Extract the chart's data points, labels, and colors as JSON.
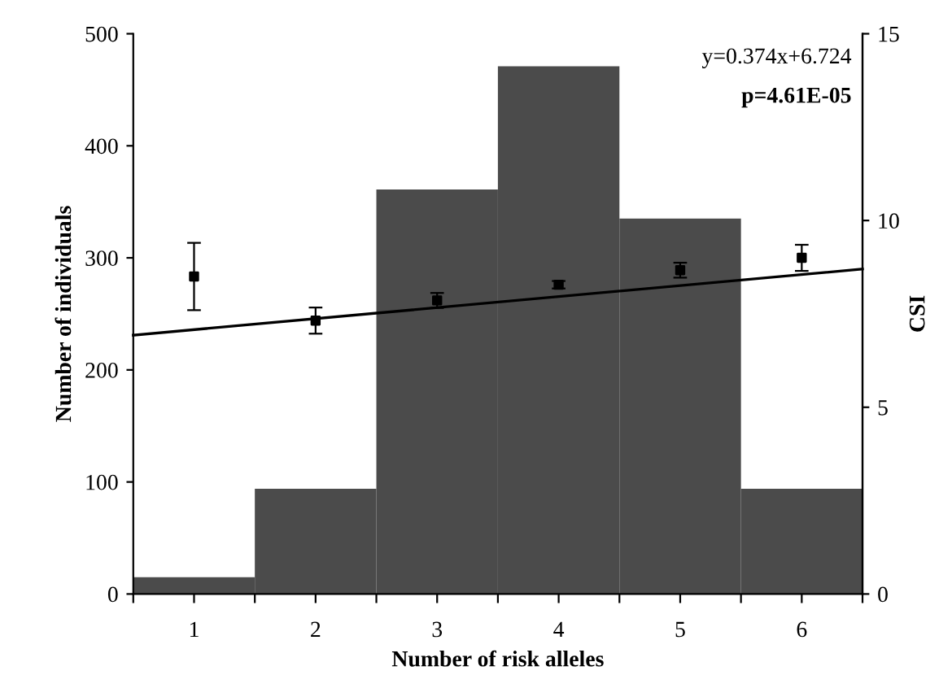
{
  "chart_data": {
    "type": "bar",
    "xlabel": "Number of risk alleles",
    "ylabel": "Number of individuals",
    "y2label": "CSI",
    "x": [
      1,
      2,
      3,
      4,
      5,
      6
    ],
    "xlim": [
      0.5,
      6.5
    ],
    "xticks": [
      {
        "value": 0.5,
        "label": null
      },
      1,
      {
        "value": 1.5,
        "label": null
      },
      2,
      {
        "value": 2.5,
        "label": null
      },
      3,
      {
        "value": 3.5,
        "label": null
      },
      4,
      {
        "value": 4.5,
        "label": null
      },
      5,
      {
        "value": 5.5,
        "label": null
      },
      6,
      {
        "value": 6.5,
        "label": null
      }
    ],
    "ylim": [
      0,
      500
    ],
    "yticks": [
      0,
      100,
      200,
      300,
      400,
      500
    ],
    "y2lim": [
      0,
      15
    ],
    "y2ticks": [
      0,
      5,
      10,
      15
    ],
    "series": [
      {
        "type": "bar",
        "color": "#4b4b4b",
        "values": [
          15,
          94,
          361,
          471,
          335,
          94
        ]
      },
      {
        "type": "scatter",
        "axis": "y2",
        "color": "#000000",
        "marker": "square",
        "values": [
          8.5,
          7.32,
          7.86,
          8.28,
          8.67,
          9.0
        ],
        "errors": [
          0.9,
          0.35,
          0.2,
          0.1,
          0.2,
          0.35
        ]
      },
      {
        "type": "line",
        "axis": "y2",
        "color": "#000000",
        "x": [
          0.5,
          6.5
        ],
        "values": [
          6.93,
          8.7
        ]
      }
    ],
    "annotations": [
      "y=0.374x+6.724",
      "p=4.61E-05"
    ],
    "grid": false,
    "legend": false
  }
}
